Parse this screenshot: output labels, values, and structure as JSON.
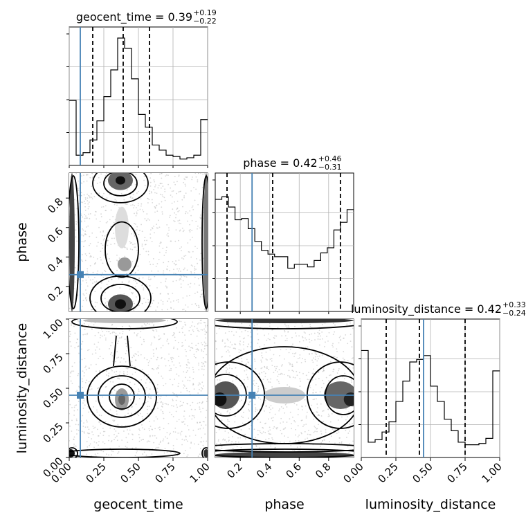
{
  "chart_data": {
    "type": "corner",
    "parameters": [
      "geocent_time",
      "phase",
      "luminosity_distance"
    ],
    "truths": [
      0.08,
      0.28,
      0.45
    ],
    "truth_color": "#4682b4",
    "ranges": [
      [
        0.0,
        1.0
      ],
      [
        0.03,
        0.97
      ],
      [
        0.0,
        1.0
      ]
    ],
    "titles": [
      {
        "param": "geocent_time",
        "median": "0.39",
        "plus": "+0.19",
        "minus": "−0.22"
      },
      {
        "param": "phase",
        "median": "0.42",
        "plus": "+0.46",
        "minus": "−0.31"
      },
      {
        "param": "luminosity_distance",
        "median": "0.42",
        "plus": "+0.33",
        "minus": "−0.24"
      }
    ],
    "quantiles": [
      [
        0.17,
        0.39,
        0.58
      ],
      [
        0.11,
        0.42,
        0.88
      ],
      [
        0.18,
        0.42,
        0.75
      ]
    ],
    "histograms": [
      {
        "param": "geocent_time",
        "bin_width": 0.05,
        "values": [
          0.51,
          0.08,
          0.1,
          0.2,
          0.35,
          0.54,
          0.75,
          1.0,
          0.92,
          0.68,
          0.4,
          0.3,
          0.16,
          0.12,
          0.08,
          0.07,
          0.05,
          0.06,
          0.08,
          0.36
        ]
      },
      {
        "param": "phase",
        "bin_width": 0.047,
        "values": [
          0.88,
          0.9,
          0.82,
          0.72,
          0.73,
          0.65,
          0.55,
          0.48,
          0.45,
          0.43,
          0.43,
          0.34,
          0.37,
          0.37,
          0.35,
          0.4,
          0.46,
          0.5,
          0.64,
          0.7,
          0.8
        ]
      },
      {
        "param": "luminosity_distance",
        "bin_width": 0.05,
        "values": [
          0.84,
          0.12,
          0.14,
          0.2,
          0.28,
          0.44,
          0.6,
          0.75,
          0.77,
          0.8,
          0.56,
          0.44,
          0.3,
          0.21,
          0.12,
          0.1,
          0.1,
          0.11,
          0.15,
          0.68
        ]
      }
    ],
    "ticks": {
      "geocent_time": [
        "0.00",
        "0.25",
        "0.50",
        "0.75",
        "1.00"
      ],
      "phase": [
        "0.2",
        "0.4",
        "0.6",
        "0.8"
      ],
      "luminosity_distance": [
        "0.00",
        "0.25",
        "0.50",
        "0.75",
        "1.00"
      ]
    },
    "grid": true
  }
}
